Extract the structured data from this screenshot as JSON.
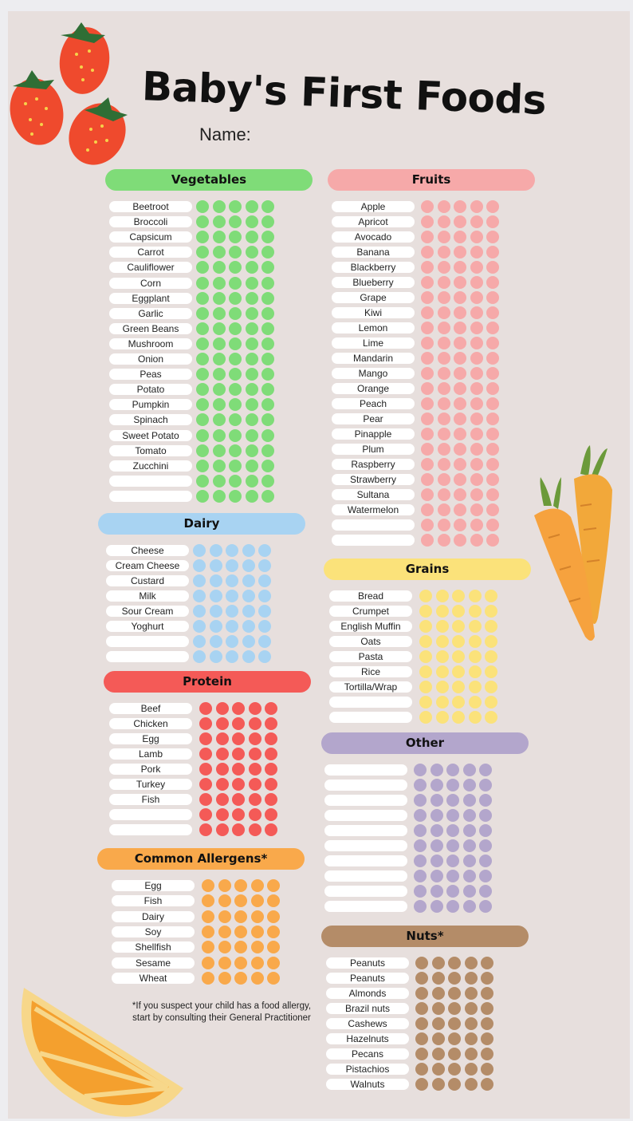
{
  "title": "Baby's First Foods",
  "name_label": "Name:",
  "footnote_line1": "*If you suspect your child has a food allergy,",
  "footnote_line2": "start by consulting their General Practitioner",
  "sections": [
    {
      "id": "vegetables",
      "title": "Vegetables",
      "color": "#7fdc78",
      "dots_color": "#7fdc78",
      "dots": 5,
      "items": [
        "Beetroot",
        "Broccoli",
        "Capsicum",
        "Carrot",
        "Cauliflower",
        "Corn",
        "Eggplant",
        "Garlic",
        "Green Beans",
        "Mushroom",
        "Onion",
        "Peas",
        "Potato",
        "Pumpkin",
        "Spinach",
        "Sweet Potato",
        "Tomato",
        "Zucchini",
        "",
        ""
      ]
    },
    {
      "id": "dairy",
      "title": "Dairy",
      "color": "#a8d3f2",
      "dots_color": "#a8d3f2",
      "dots": 5,
      "items": [
        "Cheese",
        "Cream Cheese",
        "Custard",
        "Milk",
        "Sour Cream",
        "Yoghurt",
        "",
        ""
      ]
    },
    {
      "id": "protein",
      "title": "Protein",
      "color": "#f45a57",
      "dots_color": "#f45a57",
      "dots": 5,
      "items": [
        "Beef",
        "Chicken",
        "Egg",
        "Lamb",
        "Pork",
        "Turkey",
        "Fish",
        "",
        ""
      ]
    },
    {
      "id": "allergens",
      "title": "Common Allergens*",
      "color": "#f9a94b",
      "dots_color": "#f9a94b",
      "dots": 5,
      "items": [
        "Egg",
        "Fish",
        "Dairy",
        "Soy",
        "Shellfish",
        "Sesame",
        "Wheat"
      ]
    },
    {
      "id": "fruits",
      "title": "Fruits",
      "color": "#f6a9a9",
      "dots_color": "#f6a9a9",
      "dots": 5,
      "items": [
        "Apple",
        "Apricot",
        "Avocado",
        "Banana",
        "Blackberry",
        "Blueberry",
        "Grape",
        "Kiwi",
        "Lemon",
        "Lime",
        "Mandarin",
        "Mango",
        "Orange",
        "Peach",
        "Pear",
        "Pinapple",
        "Plum",
        "Raspberry",
        "Strawberry",
        "Sultana",
        "Watermelon",
        "",
        ""
      ]
    },
    {
      "id": "grains",
      "title": "Grains",
      "color": "#fbe27a",
      "dots_color": "#fbe27a",
      "dots": 5,
      "items": [
        "Bread",
        "Crumpet",
        "English Muffin",
        "Oats",
        "Pasta",
        "Rice",
        "Tortilla/Wrap",
        "",
        ""
      ]
    },
    {
      "id": "other",
      "title": "Other",
      "color": "#b3a6cc",
      "dots_color": "#b3a6cc",
      "dots": 5,
      "items": [
        "",
        "",
        "",
        "",
        "",
        "",
        "",
        "",
        "",
        ""
      ]
    },
    {
      "id": "nuts",
      "title": "Nuts*",
      "color": "#b48c68",
      "dots_color": "#b48c68",
      "dots": 5,
      "items": [
        "Peanuts",
        "Peanuts",
        "Almonds",
        "Brazil nuts",
        "Cashews",
        "Hazelnuts",
        "Pecans",
        "Pistachios",
        "Walnuts"
      ]
    }
  ]
}
